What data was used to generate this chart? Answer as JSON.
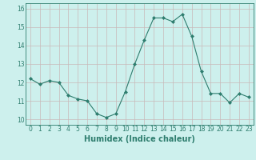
{
  "x": [
    0,
    1,
    2,
    3,
    4,
    5,
    6,
    7,
    8,
    9,
    10,
    11,
    12,
    13,
    14,
    15,
    16,
    17,
    18,
    19,
    20,
    21,
    22,
    23
  ],
  "y": [
    12.2,
    11.9,
    12.1,
    12.0,
    11.3,
    11.1,
    11.0,
    10.3,
    10.1,
    10.3,
    11.5,
    13.0,
    14.3,
    15.5,
    15.5,
    15.3,
    15.7,
    14.5,
    12.6,
    11.4,
    11.4,
    10.9,
    11.4,
    11.2
  ],
  "line_color": "#2e7d6e",
  "marker": "D",
  "marker_size": 2,
  "bg_color": "#cdf0ed",
  "grid_color": "#c8b8b8",
  "xlabel": "Humidex (Indice chaleur)",
  "xlim": [
    -0.5,
    23.5
  ],
  "ylim": [
    9.7,
    16.3
  ],
  "yticks": [
    10,
    11,
    12,
    13,
    14,
    15,
    16
  ],
  "xticks": [
    0,
    1,
    2,
    3,
    4,
    5,
    6,
    7,
    8,
    9,
    10,
    11,
    12,
    13,
    14,
    15,
    16,
    17,
    18,
    19,
    20,
    21,
    22,
    23
  ],
  "tick_label_fontsize": 5.5,
  "xlabel_fontsize": 7,
  "tick_color": "#2e7d6e",
  "axis_color": "#2e7d6e"
}
